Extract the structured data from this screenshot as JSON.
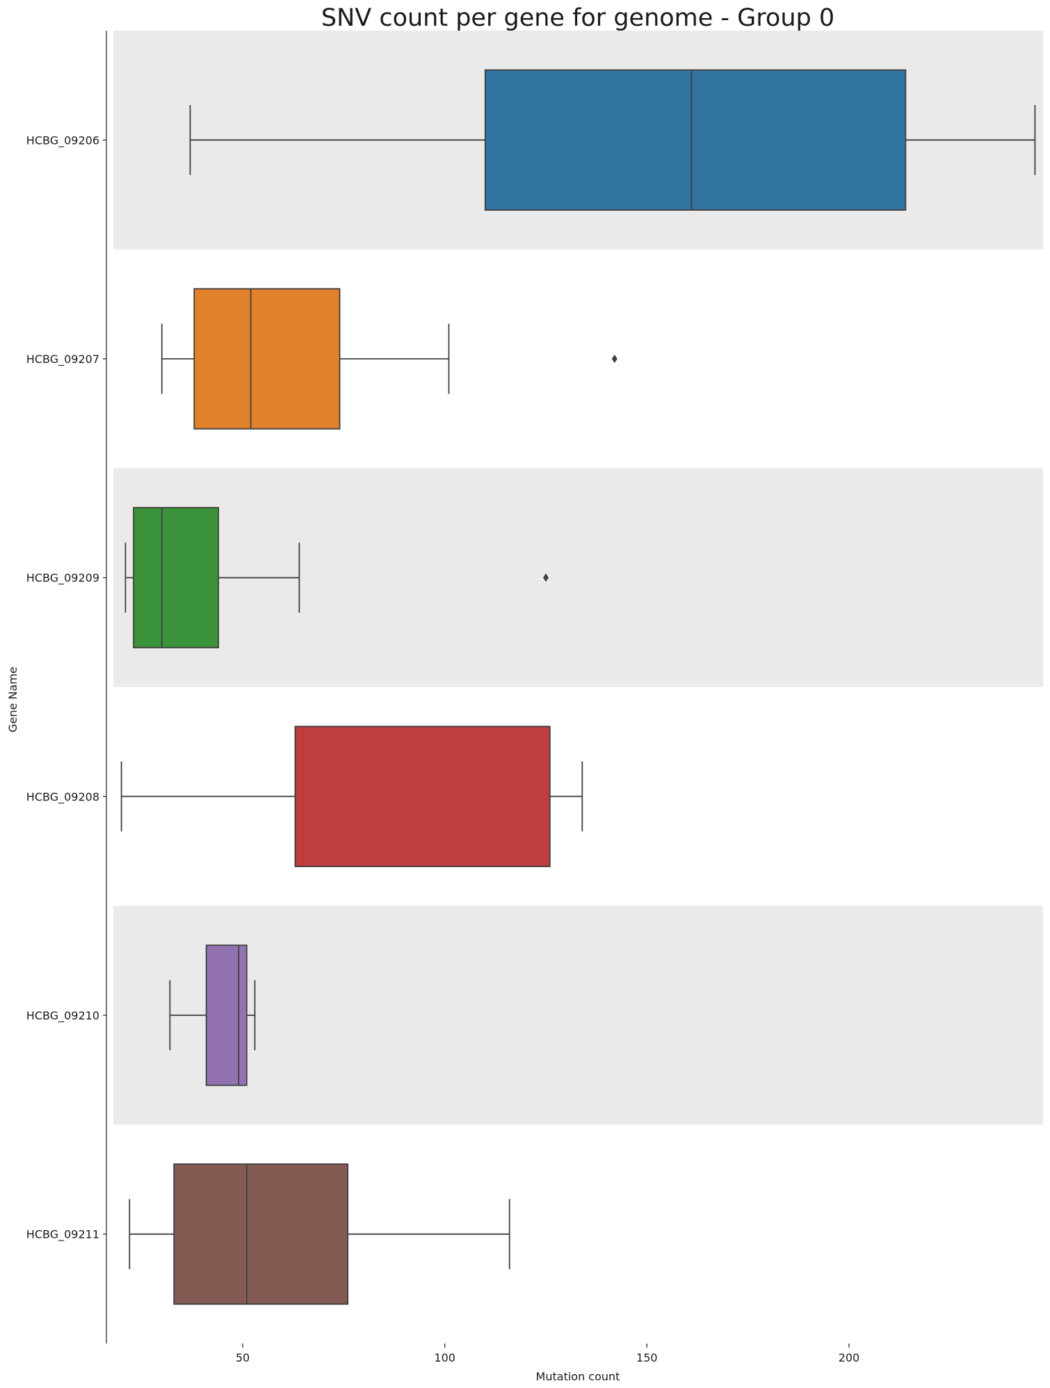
{
  "chart_data": {
    "type": "boxplot",
    "orientation": "horizontal",
    "title": "SNV count per gene for genome - Group 0",
    "xlabel": "Mutation count",
    "ylabel": "Gene Name",
    "xlim": [
      18,
      248
    ],
    "xticks": [
      50,
      100,
      150,
      200
    ],
    "xtick_labels": [
      "50",
      "100",
      "150",
      "200"
    ],
    "grid": false,
    "row_band_color": "#eaeaea",
    "categories": [
      "HCBG_09206",
      "HCBG_09207",
      "HCBG_09209",
      "HCBG_09208",
      "HCBG_09210",
      "HCBG_09211"
    ],
    "series": [
      {
        "category": "HCBG_09206",
        "whisker_low": 37,
        "q1": 110,
        "median": 161,
        "q3": 214,
        "whisker_high": 246,
        "outliers": [],
        "color": "#3274a1"
      },
      {
        "category": "HCBG_09207",
        "whisker_low": 30,
        "q1": 38,
        "median": 52,
        "q3": 74,
        "whisker_high": 101,
        "outliers": [
          142
        ],
        "color": "#e1812c"
      },
      {
        "category": "HCBG_09209",
        "whisker_low": 21,
        "q1": 23,
        "median": 30,
        "q3": 44,
        "whisker_high": 64,
        "outliers": [
          125
        ],
        "color": "#3a923a"
      },
      {
        "category": "HCBG_09208",
        "whisker_low": 20,
        "q1": 63,
        "median": 63,
        "q3": 126,
        "whisker_high": 134,
        "outliers": [],
        "color": "#c03d3e"
      },
      {
        "category": "HCBG_09210",
        "whisker_low": 32,
        "q1": 41,
        "median": 49,
        "q3": 51,
        "whisker_high": 53,
        "outliers": [],
        "color": "#9372b2"
      },
      {
        "category": "HCBG_09211",
        "whisker_low": 22,
        "q1": 33,
        "median": 51,
        "q3": 76,
        "whisker_high": 116,
        "outliers": [],
        "color": "#845b53"
      }
    ]
  }
}
